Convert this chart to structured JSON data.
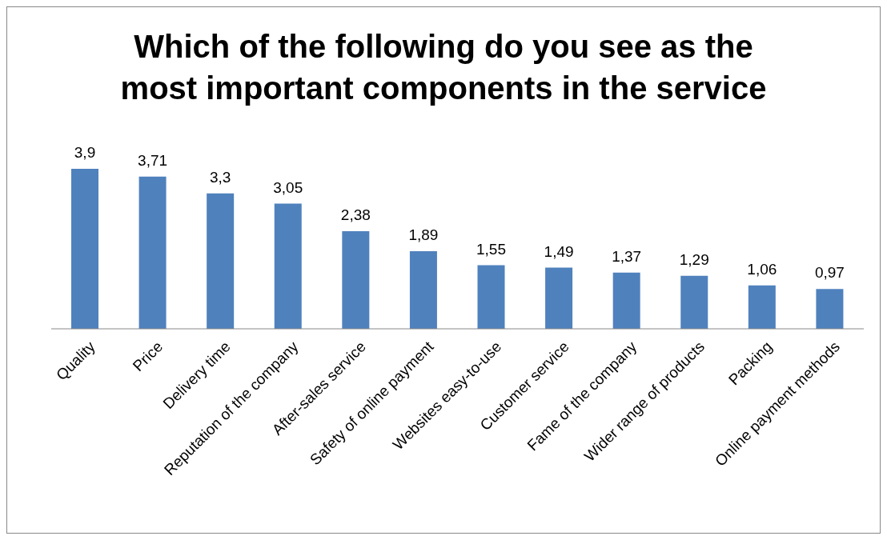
{
  "chart_data": {
    "type": "bar",
    "title": "Which of the following do you see as the most important components in the service",
    "categories": [
      "Quality",
      "Price",
      "Delivery time",
      "Reputation of the company",
      "After-sales service",
      "Safety of online payment",
      "Websites easy-to-use",
      "Customer service",
      "Fame of the company",
      "Wider range of products",
      "Packing",
      "Online payment methods"
    ],
    "values": [
      3.9,
      3.71,
      3.3,
      3.05,
      2.38,
      1.89,
      1.55,
      1.49,
      1.37,
      1.29,
      1.06,
      0.97
    ],
    "value_labels": [
      "3,9",
      "3,71",
      "3,3",
      "3,05",
      "2,38",
      "1,89",
      "1,55",
      "1,49",
      "1,37",
      "1,29",
      "1,06",
      "0,97"
    ],
    "color": "#4f81bd",
    "grid": false,
    "legend": false
  }
}
